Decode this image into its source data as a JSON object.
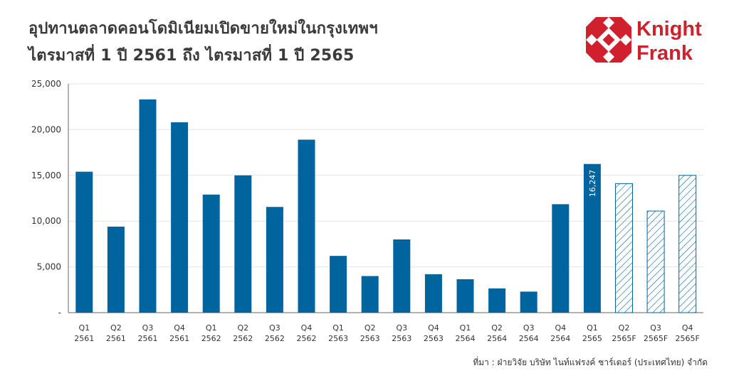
{
  "title_line1": "อุปทานตลาดคอนโดมิเนียมเปิดขายใหม่ในกรุงเทพฯ",
  "title_line2": "ไตรมาสที่ 1 ปี 2561 ถึง ไตรมาสที่ 1 ปี 2565",
  "brand": {
    "line1": "Knight",
    "line2": "Frank",
    "color": "#d0202e"
  },
  "source": "ที่มา : ฝ่ายวิจัย บริษัท ไนท์แฟรงค์ ชาร์เตอร์ (ประเทศไทย) จำกัด",
  "colors": {
    "bar": "#00649e",
    "forecast_stroke": "#00649e",
    "grid": "#e4e4e4",
    "axis": "#666666"
  },
  "chart_data": {
    "type": "bar",
    "title": "อุปทานตลาดคอนโดมิเนียมเปิดขายใหม่ในกรุงเทพฯ ไตรมาสที่ 1 ปี 2561 ถึง ไตรมาสที่ 1 ปี 2565",
    "categories": [
      [
        "Q1",
        "2561"
      ],
      [
        "Q2",
        "2561"
      ],
      [
        "Q3",
        "2561"
      ],
      [
        "Q4",
        "2561"
      ],
      [
        "Q1",
        "2562"
      ],
      [
        "Q2",
        "2562"
      ],
      [
        "Q3",
        "2562"
      ],
      [
        "Q4",
        "2562"
      ],
      [
        "Q1",
        "2563"
      ],
      [
        "Q2",
        "2563"
      ],
      [
        "Q3",
        "2563"
      ],
      [
        "Q4",
        "2563"
      ],
      [
        "Q1",
        "2564"
      ],
      [
        "Q2",
        "2564"
      ],
      [
        "Q3",
        "2564"
      ],
      [
        "Q4",
        "2564"
      ],
      [
        "Q1",
        "2565"
      ],
      [
        "Q2",
        "2565F"
      ],
      [
        "Q3",
        "2565F"
      ],
      [
        "Q4",
        "2565F"
      ]
    ],
    "values": [
      15400,
      9400,
      23300,
      20800,
      12900,
      15000,
      11550,
      18900,
      6200,
      4000,
      8000,
      4200,
      3650,
      2650,
      2300,
      11850,
      16247,
      14100,
      11100,
      15000
    ],
    "forecast": [
      false,
      false,
      false,
      false,
      false,
      false,
      false,
      false,
      false,
      false,
      false,
      false,
      false,
      false,
      false,
      false,
      false,
      true,
      true,
      true
    ],
    "data_labels": [
      {
        "index": 16,
        "text": "16,247"
      }
    ],
    "xlabel": "",
    "ylabel": "",
    "ylim": [
      0,
      25000
    ],
    "yticks": [
      {
        "value": 0,
        "label": "-"
      },
      {
        "value": 5000,
        "label": "5,000"
      },
      {
        "value": 10000,
        "label": "10,000"
      },
      {
        "value": 15000,
        "label": "15,000"
      },
      {
        "value": 20000,
        "label": "20,000"
      },
      {
        "value": 25000,
        "label": "25,000"
      }
    ],
    "grid": true,
    "legend": "none"
  }
}
